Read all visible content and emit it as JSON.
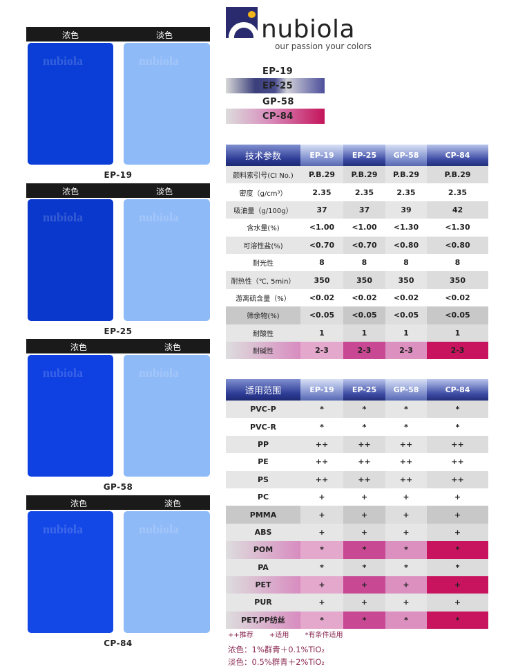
{
  "swatches": {
    "dark_label": "浓色",
    "light_label": "淡色",
    "watermark": "nubiola",
    "panels": [
      {
        "name": "EP-19",
        "dark": "#0a3ed6"
      },
      {
        "name": "EP-25",
        "dark": "#0a38cc"
      },
      {
        "name": "GP-58",
        "dark": "#0e40e2"
      },
      {
        "name": "CP-84",
        "dark": "#1448e6"
      }
    ]
  },
  "brand": {
    "name": "nubiola",
    "tagline": "our passion your colors"
  },
  "legend": {
    "items": [
      "EP-19",
      "EP-25",
      "GP-58",
      "CP-84"
    ]
  },
  "tech": {
    "headers": [
      "技术参数",
      "EP-19",
      "EP-25",
      "GP-58",
      "CP-84"
    ],
    "rows": [
      {
        "tone": "gray",
        "cells": [
          "颜料索引号(CI No.)",
          "P.B.29",
          "P.B.29",
          "P.B.29",
          "P.B.29"
        ]
      },
      {
        "tone": "white",
        "cells": [
          "密度（g/cm³）",
          "2.35",
          "2.35",
          "2.35",
          "2.35"
        ]
      },
      {
        "tone": "gray",
        "cells": [
          "吸油量（g/100g）",
          "37",
          "37",
          "39",
          "42"
        ]
      },
      {
        "tone": "white",
        "cells": [
          "含水量(%)",
          "<1.00",
          "<1.00",
          "<1.30",
          "<1.30"
        ]
      },
      {
        "tone": "gray",
        "cells": [
          "可溶性盐(%)",
          "<0.70",
          "<0.70",
          "<0.80",
          "<0.80"
        ]
      },
      {
        "tone": "white",
        "cells": [
          "耐光性",
          "8",
          "8",
          "8",
          "8"
        ]
      },
      {
        "tone": "gray",
        "cells": [
          "耐热性（℃, 5min）",
          "350",
          "350",
          "350",
          "350"
        ]
      },
      {
        "tone": "white",
        "cells": [
          "游离硫含量（%）",
          "<0.02",
          "<0.02",
          "<0.02",
          "<0.02"
        ]
      },
      {
        "tone": "dark",
        "cells": [
          "筛余物(%)",
          "<0.05",
          "<0.05",
          "<0.05",
          "<0.05"
        ]
      },
      {
        "tone": "gray",
        "cells": [
          "耐酸性",
          "1",
          "1",
          "1",
          "1"
        ]
      },
      {
        "tone": "pink",
        "cells": [
          "耐碱性",
          "2-3",
          "2-3",
          "2-3",
          "2-3"
        ]
      }
    ]
  },
  "usage": {
    "headers": [
      "适用范围",
      "EP-19",
      "EP-25",
      "GP-58",
      "CP-84"
    ],
    "rows": [
      {
        "tone": "gray",
        "cells": [
          "PVC-P",
          "*",
          "*",
          "*",
          "*"
        ]
      },
      {
        "tone": "white",
        "cells": [
          "PVC-R",
          "*",
          "*",
          "*",
          "*"
        ]
      },
      {
        "tone": "gray",
        "cells": [
          "PP",
          "++",
          "++",
          "++",
          "++"
        ]
      },
      {
        "tone": "white",
        "cells": [
          "PE",
          "++",
          "++",
          "++",
          "++"
        ]
      },
      {
        "tone": "gray",
        "cells": [
          "PS",
          "++",
          "++",
          "++",
          "++"
        ]
      },
      {
        "tone": "white",
        "cells": [
          "PC",
          "+",
          "+",
          "+",
          "+"
        ]
      },
      {
        "tone": "dark",
        "cells": [
          "PMMA",
          "+",
          "+",
          "+",
          "+"
        ]
      },
      {
        "tone": "gray",
        "cells": [
          "ABS",
          "+",
          "+",
          "+",
          "+"
        ]
      },
      {
        "tone": "pink",
        "cells": [
          "POM",
          "*",
          "*",
          "*",
          "*"
        ]
      },
      {
        "tone": "gray",
        "cells": [
          "PA",
          "*",
          "*",
          "*",
          "*"
        ]
      },
      {
        "tone": "pink",
        "cells": [
          "PET",
          "+",
          "+",
          "+",
          "+"
        ]
      },
      {
        "tone": "gray",
        "cells": [
          "PUR",
          "+",
          "+",
          "+",
          "+"
        ]
      },
      {
        "tone": "pink",
        "cells": [
          "PET,PP纺丝",
          "*",
          "*",
          "*",
          "*"
        ]
      }
    ]
  },
  "key": [
    "++推荐",
    "+适用",
    "*有条件适用"
  ],
  "notes": [
    "浓色：1%群青＋0.1%TiO₂",
    "淡色：0.5%群青＋2%TiO₂"
  ]
}
